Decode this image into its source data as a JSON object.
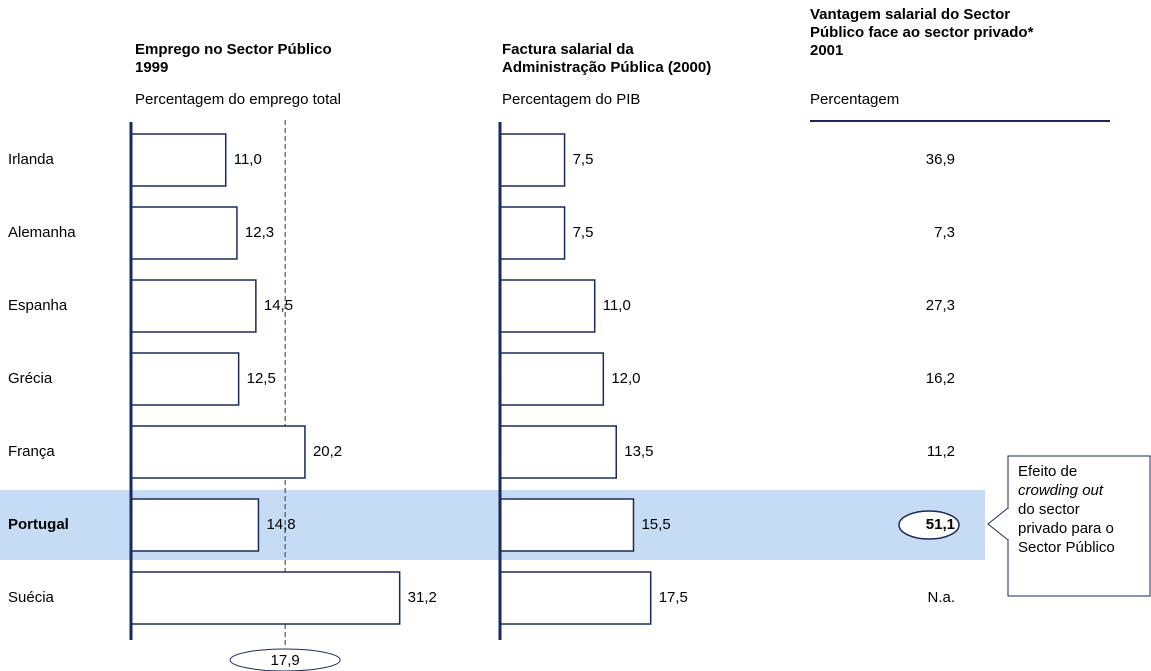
{
  "chart_data": [
    {
      "type": "hbar",
      "title": "Emprego no Sector Público\n1999",
      "subtitle": "Percentagem do emprego total",
      "categories": [
        "Irlanda",
        "Alemanha",
        "Espanha",
        "Grécia",
        "França",
        "Portugal",
        "Suécia"
      ],
      "values": [
        11.0,
        12.3,
        14.5,
        12.5,
        20.2,
        14.8,
        31.2
      ],
      "value_labels": [
        "11,0",
        "12,3",
        "14,5",
        "12,5",
        "20,2",
        "14,8",
        "31,2"
      ],
      "reference": {
        "value": 17.9,
        "label": "17,9"
      },
      "xlim": [
        0,
        36
      ],
      "highlight_index": 5,
      "color": "#ffffff"
    },
    {
      "type": "hbar",
      "title": "Factura salarial da\nAdministração Pública (2000)",
      "subtitle": "Percentagem do PIB",
      "values": [
        7.5,
        7.5,
        11.0,
        12.0,
        13.5,
        15.5,
        17.5
      ],
      "value_labels": [
        "7,5",
        "7,5",
        "11,0",
        "12,0",
        "13,5",
        "15,5",
        "17,5"
      ],
      "xlim": [
        0,
        36
      ],
      "color": "#ffffff"
    }
  ],
  "table": {
    "title": "Vantagem salarial do Sector\nPúblico face ao sector privado*\n2001",
    "subtitle": "Percentagem",
    "values": [
      36.9,
      7.3,
      27.3,
      16.2,
      11.2,
      51.1,
      null
    ],
    "value_labels": [
      "36,9",
      "7,3",
      "27,3",
      "16,2",
      "11,2",
      "51,1",
      "N.a."
    ]
  },
  "callout": [
    "Efeito de\n",
    "crowding out",
    "\ndo sector\nprivado para o\nSector Público"
  ]
}
